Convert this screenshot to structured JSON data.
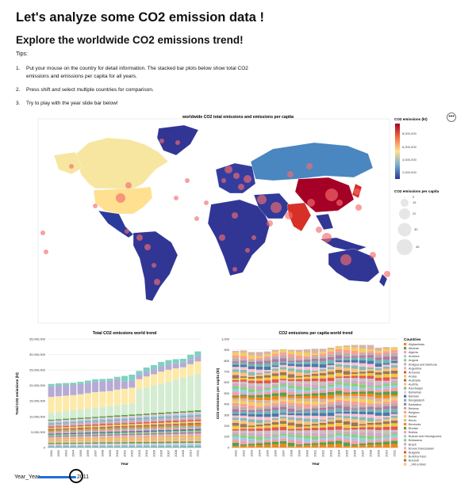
{
  "header": {
    "title": "Let's analyze some CO2 emission data !",
    "subtitle": "Explore the worldwide CO2 emissions trend!",
    "tips_label": "Tips:",
    "tips": [
      {
        "num": "1.",
        "text": "Put your mouse on the country for detail information. The stacked bar plots below show total CO2 emissions and emissions per capita for all years."
      },
      {
        "num": "2.",
        "text": "Press shift and select multiple countries for comparison."
      },
      {
        "num": "3.",
        "text": "Try to play with the year slide bar below!"
      }
    ]
  },
  "actions": {
    "more_label": "•••"
  },
  "map": {
    "title": "worldwide CO2 total emissions and emissions per capita",
    "color_legend_title": "CO2 emissions (kt)",
    "color_ticks": [
      "8,000,000",
      "6,000,000",
      "4,000,000",
      "2,000,000"
    ],
    "size_legend_title": "CO2 emissions per capita",
    "size_ticks": [
      "0",
      "15",
      "22",
      "30",
      "45"
    ],
    "colors": {
      "low": "#313695",
      "mid": "#fee090",
      "high": "#a50026",
      "ocean": "#ffffff",
      "bubble": "#f46d6d"
    }
  },
  "chart_data": [
    {
      "type": "bar",
      "title": "Total CO2 emissions world trend",
      "xlabel": "Year",
      "ylabel": "Total CO2 emissions (kt)",
      "ylim": [
        0,
        35000000
      ],
      "yticks": [
        "0",
        "5,000,000",
        "10,000,000",
        "15,000,000",
        "20,000,000",
        "25,000,000",
        "30,000,000",
        "35,000,000"
      ],
      "categories": [
        "1991",
        "1992",
        "1993",
        "1994",
        "1995",
        "1996",
        "1997",
        "1998",
        "1999",
        "2000",
        "2001",
        "2002",
        "2003",
        "2004",
        "2005",
        "2006",
        "2007",
        "2008",
        "2009",
        "2010",
        "2011"
      ],
      "values": [
        20500000,
        20700000,
        20800000,
        20900000,
        21200000,
        21600000,
        22000000,
        22100000,
        22200000,
        22800000,
        23100000,
        23500000,
        24700000,
        25800000,
        26600000,
        27600000,
        28200000,
        28500000,
        28600000,
        29900000,
        31000000
      ],
      "stacked": true
    },
    {
      "type": "bar",
      "title": "CO2 emissions per capita world trend",
      "xlabel": "Year",
      "ylabel": "CO2 emissions per capita (kt)",
      "ylim": [
        0,
        1000
      ],
      "yticks": [
        "0",
        "100",
        "200",
        "300",
        "400",
        "500",
        "600",
        "700",
        "800",
        "900",
        "1,000"
      ],
      "categories": [
        "1991",
        "1992",
        "1993",
        "1994",
        "1995",
        "1996",
        "1997",
        "1998",
        "1999",
        "2000",
        "2001",
        "2002",
        "2003",
        "2004",
        "2005",
        "2006",
        "2007",
        "2008",
        "2009",
        "2010",
        "2011"
      ],
      "values": [
        890,
        895,
        880,
        880,
        885,
        900,
        905,
        900,
        900,
        905,
        910,
        910,
        920,
        935,
        940,
        945,
        945,
        945,
        920,
        925,
        925
      ],
      "stacked": true,
      "legend_title": "Countries",
      "legend": [
        "Afghanistan",
        "Albania",
        "Algeria",
        "Andorra",
        "Angola",
        "Antigua and Barbuda",
        "Argentina",
        "Armenia",
        "Aruba",
        "Australia",
        "Austria",
        "Azerbaijan",
        "Bahamas",
        "Bahrain",
        "Bangladesh",
        "Barbados",
        "Belarus",
        "Belgium",
        "Belize",
        "Benin",
        "Bermuda",
        "Bhutan",
        "Bolivia",
        "Bosnia and Herzegovina",
        "Botswana",
        "Brazil",
        "Brunei Darussalam",
        "Bulgaria",
        "Burkina Faso",
        "Burundi",
        "...148 entries"
      ]
    }
  ],
  "slider": {
    "label": "Year_Year",
    "value": "2011",
    "fill": 1.0
  }
}
